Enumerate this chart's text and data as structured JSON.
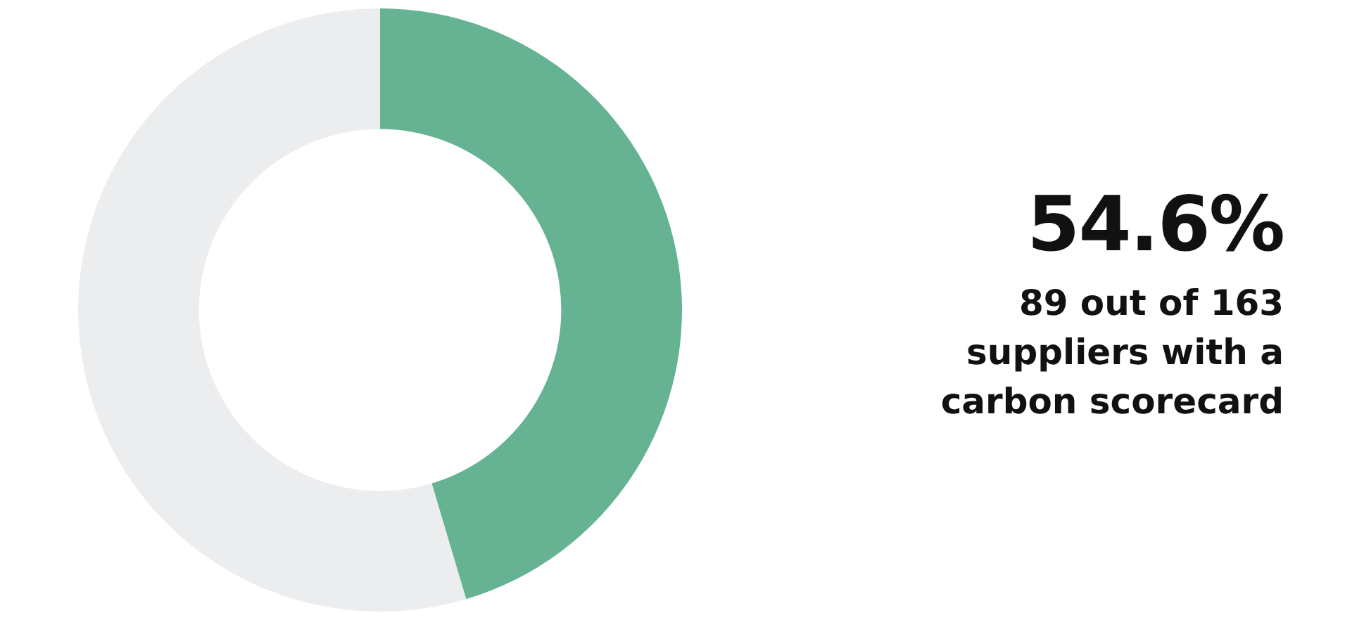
{
  "chart_data": {
    "type": "donut",
    "categories": [
      null,
      null
    ],
    "values": [
      45.4,
      54.6
    ],
    "colors": [
      "#65b393",
      "#ecedef"
    ],
    "annotations": [
      "54.6%",
      "89 out of 163 suppliers with a carbon scorecard"
    ],
    "legend": false
  }
}
